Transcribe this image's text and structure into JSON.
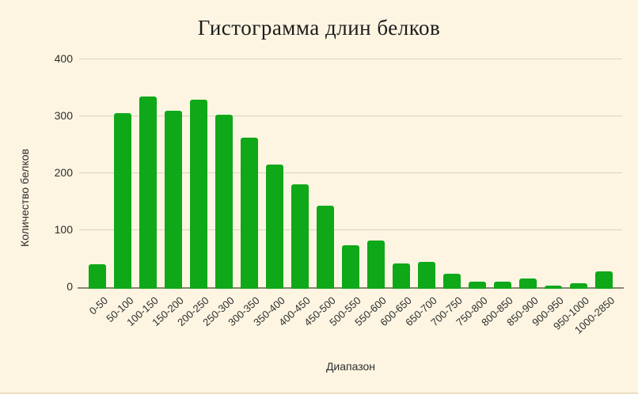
{
  "chart_data": {
    "type": "bar",
    "title": "Гистограмма длин белков",
    "xlabel": "Диапазон",
    "ylabel": "Количество белков",
    "categories": [
      "0-50",
      "50-100",
      "100-150",
      "150-200",
      "200-250",
      "250-300",
      "300-350",
      "350-400",
      "400-450",
      "450-500",
      "500-550",
      "550-600",
      "600-650",
      "650-700",
      "700-750",
      "750-800",
      "800-850",
      "850-900",
      "900-950",
      "950-1000",
      "1000-2850"
    ],
    "values": [
      40,
      305,
      335,
      310,
      329,
      303,
      262,
      215,
      180,
      143,
      74,
      82,
      42,
      44,
      24,
      10,
      10,
      15,
      3,
      7,
      28
    ],
    "ylim": [
      0,
      400
    ],
    "yticks": [
      0,
      100,
      200,
      300,
      400
    ],
    "grid": true,
    "legend": "none",
    "bar_color": "#0fa818",
    "background_color": "#fdf5e2",
    "gridline_color": "#d9d3c1",
    "axis_line_color": "#8a857a",
    "text_color": "#2e2e2e"
  }
}
